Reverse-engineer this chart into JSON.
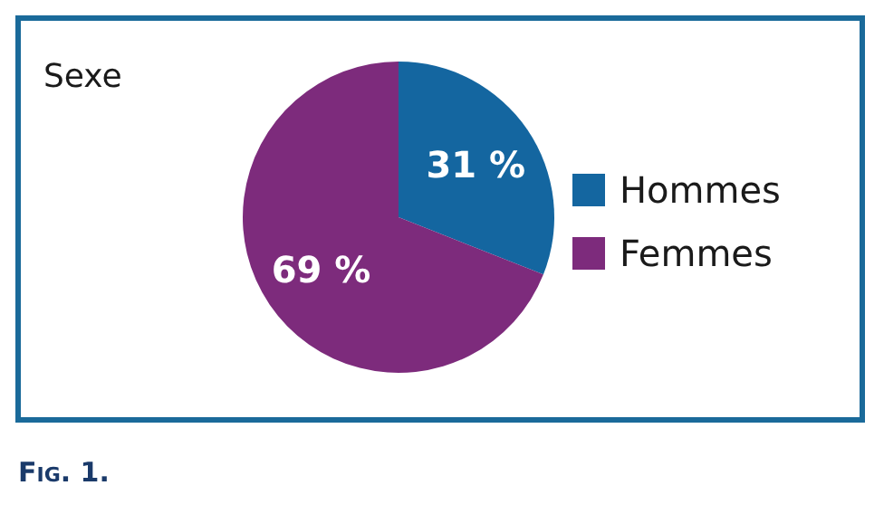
{
  "chart_data": {
    "type": "pie",
    "title": "Sexe",
    "categories": [
      "Hommes",
      "Femmes"
    ],
    "values": [
      31,
      69
    ],
    "colors": [
      "#1466a0",
      "#7d2b7c"
    ],
    "value_labels": [
      "31 %",
      "69 %"
    ],
    "legend": "right",
    "annotations": [
      "Fig. 1."
    ]
  }
}
